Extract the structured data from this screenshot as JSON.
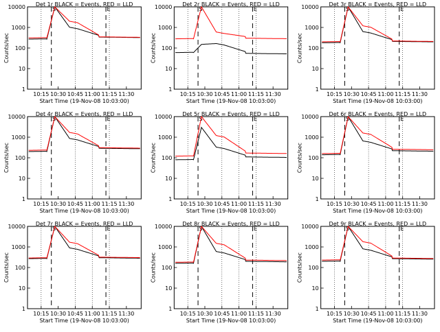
{
  "chart_data": [
    {
      "type": "line",
      "title": "Det 1r BLACK = Events, RED = LLD",
      "xlabel": "Start Time (19-Nov-08 10:03:00)",
      "ylabel": "Counts/sec",
      "ylim": [
        1,
        10000
      ],
      "yscale": "log",
      "x_ticks": [
        "10:15",
        "10:30",
        "10:45",
        "11:00",
        "11:15",
        "11:30"
      ],
      "y_ticks": [
        "1",
        "10",
        "100",
        "1000",
        "10000"
      ],
      "markers": [
        {
          "label": "S",
          "time": "10:24"
        },
        {
          "label": "E",
          "time": "11:12"
        }
      ],
      "series": [
        {
          "color": "#000000",
          "base": 270,
          "peak": 10000,
          "after": 340
        },
        {
          "color": "#ff0000",
          "base": 310,
          "peak": 10000,
          "plateau": 2000,
          "after": 350
        }
      ]
    },
    {
      "type": "line",
      "title": "Det 2r BLACK = Events, RED = LLD",
      "xlabel": "Start Time (19-Nov-08 10:03:00)",
      "ylabel": "Counts/sec",
      "ylim": [
        1,
        10000
      ],
      "yscale": "log",
      "x_ticks": [
        "10:15",
        "10:30",
        "10:45",
        "11:00",
        "11:15",
        "11:30"
      ],
      "y_ticks": [
        "1",
        "10",
        "100",
        "1000",
        "10000"
      ],
      "markers": [
        {
          "label": "S",
          "time": "10:24"
        },
        {
          "label": "E",
          "time": "11:12"
        }
      ],
      "series": [
        {
          "color": "#000000",
          "base": 60,
          "peak": 150,
          "after": 55
        },
        {
          "color": "#ff0000",
          "base": 280,
          "peak": 10000,
          "plateau": 600,
          "after": 300
        }
      ]
    },
    {
      "type": "line",
      "title": "Det 3r BLACK = Events, RED = LLD",
      "xlabel": "Start Time (19-Nov-08 10:03:00)",
      "ylabel": "Counts/sec",
      "ylim": [
        1,
        10000
      ],
      "yscale": "log",
      "x_ticks": [
        "10:15",
        "10:30",
        "10:45",
        "11:00",
        "11:15",
        "11:30"
      ],
      "y_ticks": [
        "1",
        "10",
        "100",
        "1000",
        "10000"
      ],
      "markers": [
        {
          "label": "S",
          "time": "10:24"
        },
        {
          "label": "E",
          "time": "11:12"
        }
      ],
      "series": [
        {
          "color": "#000000",
          "base": 180,
          "peak": 10000,
          "after": 210
        },
        {
          "color": "#ff0000",
          "base": 200,
          "peak": 10000,
          "plateau": 1200,
          "after": 220
        }
      ]
    },
    {
      "type": "line",
      "title": "Det 4r BLACK = Events, RED = LLD",
      "xlabel": "Start Time (19-Nov-08 10:03:00)",
      "ylabel": "Counts/sec",
      "ylim": [
        1,
        10000
      ],
      "yscale": "log",
      "x_ticks": [
        "10:15",
        "10:30",
        "10:45",
        "11:00",
        "11:15",
        "11:30"
      ],
      "y_ticks": [
        "1",
        "10",
        "100",
        "1000",
        "10000"
      ],
      "markers": [
        {
          "label": "S",
          "time": "10:24"
        },
        {
          "label": "E",
          "time": "11:12"
        }
      ],
      "series": [
        {
          "color": "#000000",
          "base": 200,
          "peak": 10000,
          "after": 290
        },
        {
          "color": "#ff0000",
          "base": 230,
          "peak": 10000,
          "plateau": 1700,
          "after": 310
        }
      ]
    },
    {
      "type": "line",
      "title": "Det 5r BLACK = Events, RED = LLD",
      "xlabel": "Start Time (19-Nov-08 10:03:00)",
      "ylabel": "Counts/sec",
      "ylim": [
        1,
        10000
      ],
      "yscale": "log",
      "x_ticks": [
        "10:15",
        "10:30",
        "10:45",
        "11:00",
        "11:15",
        "11:30"
      ],
      "y_ticks": [
        "1",
        "10",
        "100",
        "1000",
        "10000"
      ],
      "markers": [
        {
          "label": "S",
          "time": "10:24"
        },
        {
          "label": "E",
          "time": "11:12"
        }
      ],
      "series": [
        {
          "color": "#000000",
          "base": 80,
          "peak": 3000,
          "after": 110
        },
        {
          "color": "#ff0000",
          "base": 120,
          "peak": 10000,
          "plateau": 1200,
          "after": 170
        }
      ]
    },
    {
      "type": "line",
      "title": "Det 6r BLACK = Events, RED = LLD",
      "xlabel": "Start Time (19-Nov-08 10:03:00)",
      "ylabel": "Counts/sec",
      "ylim": [
        1,
        10000
      ],
      "yscale": "log",
      "x_ticks": [
        "10:15",
        "10:30",
        "10:45",
        "11:00",
        "11:15",
        "11:30"
      ],
      "y_ticks": [
        "1",
        "10",
        "100",
        "1000",
        "10000"
      ],
      "markers": [
        {
          "label": "S",
          "time": "10:24"
        },
        {
          "label": "E",
          "time": "11:12"
        }
      ],
      "series": [
        {
          "color": "#000000",
          "base": 140,
          "peak": 10000,
          "after": 220
        },
        {
          "color": "#ff0000",
          "base": 160,
          "peak": 10000,
          "plateau": 1600,
          "after": 260
        }
      ]
    },
    {
      "type": "line",
      "title": "Det 7r BLACK = Events, RED = LLD",
      "xlabel": "Start Time (19-Nov-08 10:03:00)",
      "ylabel": "Counts/sec",
      "ylim": [
        1,
        10000
      ],
      "yscale": "log",
      "x_ticks": [
        "10:15",
        "10:30",
        "10:45",
        "11:00",
        "11:15",
        "11:30"
      ],
      "y_ticks": [
        "1",
        "10",
        "100",
        "1000",
        "10000"
      ],
      "markers": [
        {
          "label": "S",
          "time": "10:24"
        },
        {
          "label": "E",
          "time": "11:12"
        }
      ],
      "series": [
        {
          "color": "#000000",
          "base": 270,
          "peak": 10000,
          "after": 300
        },
        {
          "color": "#ff0000",
          "base": 290,
          "peak": 10000,
          "plateau": 1700,
          "after": 320
        }
      ]
    },
    {
      "type": "line",
      "title": "Det 8r BLACK = Events, RED = LLD",
      "xlabel": "Start Time (19-Nov-08 10:03:00)",
      "ylabel": "Counts/sec",
      "ylim": [
        1,
        10000
      ],
      "yscale": "log",
      "x_ticks": [
        "10:15",
        "10:30",
        "10:45",
        "11:00",
        "11:15",
        "11:30"
      ],
      "y_ticks": [
        "1",
        "10",
        "100",
        "1000",
        "10000"
      ],
      "markers": [
        {
          "label": "S",
          "time": "10:24"
        },
        {
          "label": "E",
          "time": "11:12"
        }
      ],
      "series": [
        {
          "color": "#000000",
          "base": 160,
          "peak": 10000,
          "after": 200
        },
        {
          "color": "#ff0000",
          "base": 180,
          "peak": 10000,
          "plateau": 1500,
          "after": 230
        }
      ]
    },
    {
      "type": "line",
      "title": "Det 9r BLACK = Events, RED = LLD",
      "xlabel": "Start Time (19-Nov-08 10:03:00)",
      "ylabel": "Counts/sec",
      "ylim": [
        1,
        10000
      ],
      "yscale": "log",
      "x_ticks": [
        "10:15",
        "10:30",
        "10:45",
        "11:00",
        "11:15",
        "11:30"
      ],
      "y_ticks": [
        "1",
        "10",
        "100",
        "1000",
        "10000"
      ],
      "markers": [
        {
          "label": "S",
          "time": "10:24"
        },
        {
          "label": "E",
          "time": "11:12"
        }
      ],
      "series": [
        {
          "color": "#000000",
          "base": 200,
          "peak": 10000,
          "after": 270
        },
        {
          "color": "#ff0000",
          "base": 230,
          "peak": 10000,
          "plateau": 1800,
          "after": 290
        }
      ]
    }
  ]
}
